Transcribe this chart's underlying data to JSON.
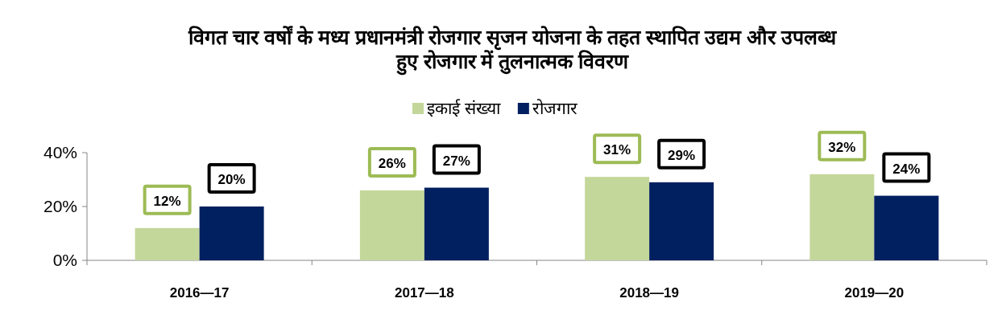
{
  "chart_data": {
    "type": "bar",
    "title": "विगत चार वर्षों के मध्य प्रधानमंत्री रोजगार सृजन योजना के तहत स्थापित उद्यम और उपलब्ध हुए रोजगार में तुलनात्मक विवरण",
    "categories": [
      "2016—17",
      "2017—18",
      "2018—19",
      "2019—20"
    ],
    "series": [
      {
        "name": "इकाई संख्या",
        "color": "#c4d79b",
        "values": [
          12,
          26,
          31,
          32
        ],
        "value_labels": [
          "12%",
          "26%",
          "31%",
          "32%"
        ]
      },
      {
        "name": "रोजगार",
        "color": "#002060",
        "values": [
          20,
          27,
          29,
          24
        ],
        "value_labels": [
          "20%",
          "27%",
          "29%",
          "24%"
        ]
      }
    ],
    "ylim": [
      0,
      40
    ],
    "yticks": [
      {
        "value": 0,
        "label": "0%"
      },
      {
        "value": 20,
        "label": "20%"
      },
      {
        "value": 40,
        "label": "40%"
      }
    ],
    "grid": false,
    "legend": "top"
  }
}
